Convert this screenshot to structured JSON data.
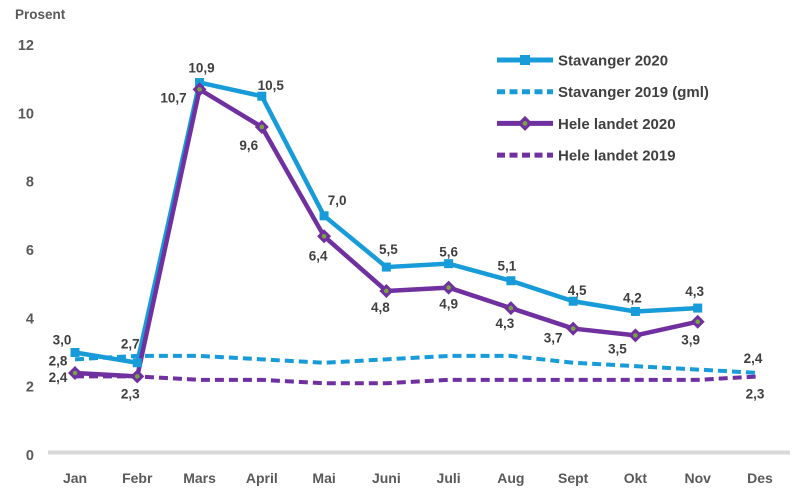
{
  "chart_data": {
    "type": "line",
    "title": "",
    "ylabel": "Prosent",
    "xlabel": "",
    "ylim": [
      0,
      12
    ],
    "yticks": [
      12,
      10,
      8,
      6,
      4,
      2,
      0
    ],
    "grid": false,
    "legend_position": "top-right",
    "categories": [
      "Jan",
      "Febr",
      "Mars",
      "April",
      "Mai",
      "Juni",
      "Juli",
      "Aug",
      "Sept",
      "Okt",
      "Nov",
      "Des"
    ],
    "series": [
      {
        "id": "stavanger-2020",
        "name": "Stavanger 2020",
        "color": "#189CD9",
        "dash": false,
        "marker": "square",
        "values": [
          3.0,
          2.7,
          10.9,
          10.5,
          7.0,
          5.5,
          5.6,
          5.1,
          4.5,
          4.2,
          4.3,
          null
        ],
        "labels": [
          {
            "i": 0,
            "text": "3,0",
            "dx": -13,
            "dy": -13
          },
          {
            "i": 1,
            "text": "2,7",
            "dx": -7,
            "dy": -19
          },
          {
            "i": 2,
            "text": "10,9",
            "dx": 2,
            "dy": -15
          },
          {
            "i": 3,
            "text": "10,5",
            "dx": 9,
            "dy": -11
          },
          {
            "i": 4,
            "text": "7,0",
            "dx": 13,
            "dy": -16
          },
          {
            "i": 5,
            "text": "5,5",
            "dx": 2,
            "dy": -18
          },
          {
            "i": 6,
            "text": "5,6",
            "dx": 0,
            "dy": -12
          },
          {
            "i": 7,
            "text": "5,1",
            "dx": -4,
            "dy": -15
          },
          {
            "i": 8,
            "text": "4,5",
            "dx": 4,
            "dy": -11
          },
          {
            "i": 9,
            "text": "4,2",
            "dx": -3,
            "dy": -14
          },
          {
            "i": 10,
            "text": "4,3",
            "dx": -3,
            "dy": -17
          }
        ]
      },
      {
        "id": "stavanger-2019",
        "name": "Stavanger 2019 (gml)",
        "color": "#189CD9",
        "dash": true,
        "marker": "none",
        "values": [
          2.8,
          2.9,
          2.9,
          2.8,
          2.7,
          2.8,
          2.9,
          2.9,
          2.7,
          2.6,
          2.5,
          2.4
        ],
        "labels": [
          {
            "i": 0,
            "text": "2,8",
            "dx": -17,
            "dy": 1
          },
          {
            "i": 11,
            "text": "2,4",
            "dx": -7,
            "dy": -15
          }
        ]
      },
      {
        "id": "hele-landet-2020",
        "name": "Hele landet 2020",
        "color": "#7030A0",
        "dash": false,
        "marker": "diamond",
        "values": [
          2.4,
          2.3,
          10.7,
          9.6,
          6.4,
          4.8,
          4.9,
          4.3,
          3.7,
          3.5,
          3.9,
          null
        ],
        "labels": [
          {
            "i": 0,
            "text": "2,4",
            "dx": -17,
            "dy": 4
          },
          {
            "i": 1,
            "text": "2,3",
            "dx": -7,
            "dy": 17
          },
          {
            "i": 2,
            "text": "10,7",
            "dx": -26,
            "dy": 8
          },
          {
            "i": 3,
            "text": "9,6",
            "dx": -13,
            "dy": 18
          },
          {
            "i": 4,
            "text": "6,4",
            "dx": -6,
            "dy": 19
          },
          {
            "i": 5,
            "text": "4,8",
            "dx": -6,
            "dy": 16
          },
          {
            "i": 6,
            "text": "4,9",
            "dx": 0,
            "dy": 16
          },
          {
            "i": 7,
            "text": "4,3",
            "dx": -6,
            "dy": 15
          },
          {
            "i": 8,
            "text": "3,7",
            "dx": -20,
            "dy": 9
          },
          {
            "i": 9,
            "text": "3,5",
            "dx": -18,
            "dy": 13
          },
          {
            "i": 10,
            "text": "3,9",
            "dx": -7,
            "dy": 18
          }
        ]
      },
      {
        "id": "hele-landet-2019",
        "name": "Hele landet 2019",
        "color": "#7030A0",
        "dash": true,
        "marker": "none",
        "values": [
          2.3,
          2.3,
          2.2,
          2.2,
          2.1,
          2.1,
          2.2,
          2.2,
          2.2,
          2.2,
          2.2,
          2.3
        ],
        "labels": [
          {
            "i": 11,
            "text": "2,3",
            "dx": -5,
            "dy": 17
          }
        ]
      }
    ],
    "colors": {
      "blue": "#189CD9",
      "purple": "#7030A0",
      "marker_center_green": "#76A53F",
      "data_label_text": "#3F3F3F",
      "axis_text": "#595959",
      "legend_text": "#404040",
      "baseline": "#D9D9D9",
      "background": "#FFFFFF"
    }
  }
}
